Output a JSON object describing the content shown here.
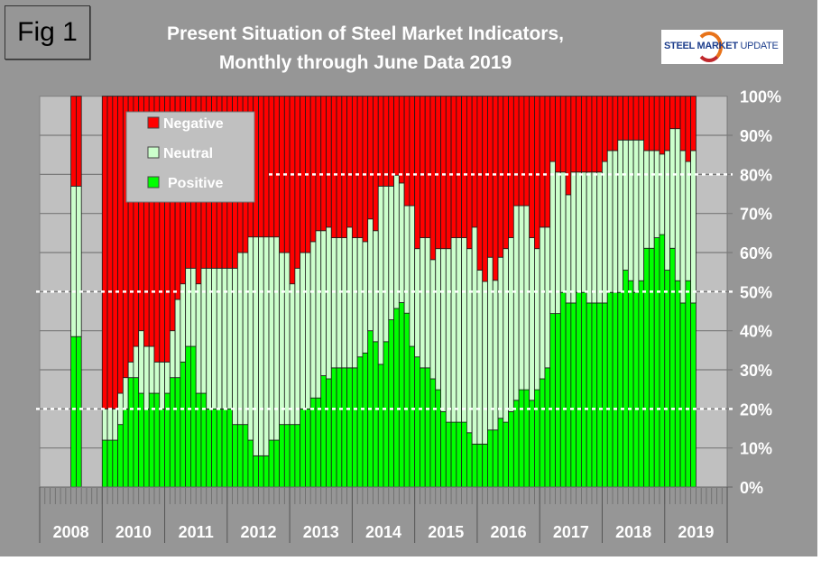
{
  "figure_label": "Fig 1",
  "logo_text": {
    "bold": "STEEL MARKET",
    "light": " UPDATE"
  },
  "chart_data": {
    "type": "bar",
    "stacked": "100%",
    "title": "Present Situation of Steel Market Indicators,",
    "subtitle": "Monthly through June Data 2019",
    "year_labels": [
      "2008",
      "2010",
      "2011",
      "2012",
      "2013",
      "2014",
      "2015",
      "2016",
      "2017",
      "2018",
      "2019"
    ],
    "y_ticks": [
      "0%",
      "10%",
      "20%",
      "30%",
      "40%",
      "50%",
      "60%",
      "70%",
      "80%",
      "90%",
      "100%"
    ],
    "ylim": [
      0,
      100
    ],
    "grid": true,
    "reference_lines": [
      20,
      50,
      80
    ],
    "legend_position": "top-left",
    "colors": {
      "Negative": "#ff0000",
      "Neutral": "#ccffcc",
      "Positive": "#00ff00",
      "plot_bg": "#c0c0c0",
      "background": "#969696"
    },
    "x": [
      "2008-07",
      "2008-08",
      "2010-01",
      "2010-02",
      "2010-03",
      "2010-04",
      "2010-05",
      "2010-06",
      "2010-07",
      "2010-08",
      "2010-09",
      "2010-10",
      "2010-11",
      "2010-12",
      "2011-01",
      "2011-02",
      "2011-03",
      "2011-04",
      "2011-05",
      "2011-06",
      "2011-07",
      "2011-08",
      "2011-09",
      "2011-10",
      "2011-11",
      "2011-12",
      "2012-01",
      "2012-02",
      "2012-03",
      "2012-04",
      "2012-05",
      "2012-06",
      "2012-07",
      "2012-08",
      "2012-09",
      "2012-10",
      "2012-11",
      "2012-12",
      "2013-01",
      "2013-02",
      "2013-03",
      "2013-04",
      "2013-05",
      "2013-06",
      "2013-07",
      "2013-08",
      "2013-09",
      "2013-10",
      "2013-11",
      "2013-12",
      "2014-01",
      "2014-02",
      "2014-03",
      "2014-04",
      "2014-05",
      "2014-06",
      "2014-07",
      "2014-08",
      "2014-09",
      "2014-10",
      "2014-11",
      "2014-12",
      "2015-01",
      "2015-02",
      "2015-03",
      "2015-04",
      "2015-05",
      "2015-06",
      "2015-07",
      "2015-08",
      "2015-09",
      "2015-10",
      "2015-11",
      "2015-12",
      "2016-01",
      "2016-02",
      "2016-03",
      "2016-04",
      "2016-05",
      "2016-06",
      "2016-07",
      "2016-08",
      "2016-09",
      "2016-10",
      "2016-11",
      "2016-12",
      "2017-01",
      "2017-02",
      "2017-03",
      "2017-04",
      "2017-05",
      "2017-06",
      "2017-07",
      "2017-08",
      "2017-09",
      "2017-10",
      "2017-11",
      "2017-12",
      "2018-01",
      "2018-02",
      "2018-03",
      "2018-04",
      "2018-05",
      "2018-06",
      "2018-07",
      "2018-08",
      "2018-09",
      "2018-10",
      "2018-11",
      "2018-12",
      "2019-01",
      "2019-02",
      "2019-03",
      "2019-04",
      "2019-05",
      "2019-06"
    ],
    "series": [
      {
        "name": "Positive",
        "values": [
          38.5,
          38.5,
          12,
          12,
          12,
          16,
          20,
          28,
          28,
          24,
          20,
          24,
          24,
          20,
          24,
          28,
          28,
          32,
          36,
          36,
          24,
          24,
          20,
          20,
          20,
          20,
          20,
          16,
          16,
          16,
          12,
          8,
          8,
          8,
          12,
          12,
          16,
          16,
          16,
          16,
          20,
          20,
          22.8,
          22.8,
          28.5,
          27.7,
          30.5,
          30.5,
          30.5,
          30.5,
          30.5,
          33.3,
          34.3,
          40,
          37.2,
          31.4,
          37.2,
          42.8,
          45.7,
          47.2,
          44.5,
          36,
          33.3,
          30.5,
          30.5,
          27.7,
          24.9,
          19.3,
          16.6,
          16.6,
          16.6,
          16.6,
          13.9,
          11,
          11,
          11,
          14.6,
          14.6,
          17.6,
          16.6,
          19.3,
          22.2,
          24.9,
          24.9,
          22.2,
          24.9,
          27.7,
          30.5,
          44.4,
          44.4,
          49.8,
          47.1,
          47.1,
          49.8,
          49.8,
          47.1,
          47.1,
          47.1,
          47.1,
          49.8,
          49.8,
          49.8,
          55.5,
          52.8,
          49.8,
          52.8,
          61.1,
          61.1,
          63.8,
          64.6,
          55.5,
          61.1,
          52.8,
          47.1,
          52.8,
          47.1
        ]
      },
      {
        "name": "Neutral",
        "values": [
          38.5,
          38.5,
          8,
          8,
          8,
          8,
          8,
          4,
          8,
          16,
          16,
          12,
          8,
          12,
          8,
          12,
          20,
          20,
          20,
          20,
          28,
          32,
          36,
          36,
          36,
          36,
          36,
          40,
          44,
          44,
          52,
          56,
          56,
          56,
          52,
          52,
          44,
          44,
          36,
          40,
          40,
          40,
          40,
          42.8,
          37.1,
          38.8,
          33.3,
          33.3,
          33.3,
          36,
          33.3,
          30.5,
          28.5,
          28.6,
          28.4,
          45.6,
          39.8,
          34.2,
          34.1,
          30.6,
          27.5,
          36,
          27.7,
          33.3,
          33.3,
          30.5,
          36.1,
          41.7,
          44.4,
          47.2,
          47.2,
          47.2,
          47.1,
          55.5,
          44.5,
          41.6,
          44.2,
          38.3,
          41.2,
          44.4,
          44.5,
          49.8,
          47.1,
          47.1,
          41.6,
          36.1,
          38.8,
          36,
          38.9,
          36.2,
          30.8,
          27.7,
          33.5,
          30.8,
          30.8,
          33.5,
          33.5,
          33.5,
          36.2,
          36.3,
          36.3,
          39,
          33.3,
          36,
          39,
          36,
          25,
          25,
          22.3,
          20.6,
          30.6,
          30.6,
          38.9,
          39,
          30.5,
          39
        ]
      },
      {
        "name": "Negative",
        "values": [
          23,
          23,
          80,
          80,
          80,
          76,
          72,
          68,
          64,
          60,
          64,
          64,
          68,
          68,
          68,
          60,
          52,
          48,
          44,
          44,
          48,
          44,
          44,
          44,
          44,
          44,
          44,
          44,
          40,
          40,
          36,
          36,
          36,
          36,
          36,
          36,
          40,
          40,
          48,
          44,
          40,
          40,
          37.2,
          34.4,
          34.4,
          33.5,
          36.2,
          36.2,
          36.2,
          33.5,
          36.2,
          36.2,
          37.2,
          31.4,
          34.4,
          23,
          23,
          23,
          20.2,
          22.2,
          28,
          28,
          39,
          36.2,
          36.2,
          41.8,
          39,
          39,
          39,
          36.2,
          36.2,
          36.2,
          39,
          33.5,
          44.5,
          47.4,
          41.2,
          47.1,
          41.2,
          39,
          36.2,
          28,
          28,
          28,
          36.2,
          39,
          33.5,
          33.5,
          16.7,
          19.4,
          19.4,
          25.2,
          19.4,
          19.4,
          19.4,
          19.4,
          19.4,
          19.4,
          16.7,
          13.9,
          13.9,
          11.2,
          11.2,
          11.2,
          11.2,
          11.2,
          13.9,
          13.9,
          13.9,
          14.8,
          13.9,
          8.3,
          8.3,
          13.9,
          16.7,
          13.9
        ]
      }
    ]
  }
}
